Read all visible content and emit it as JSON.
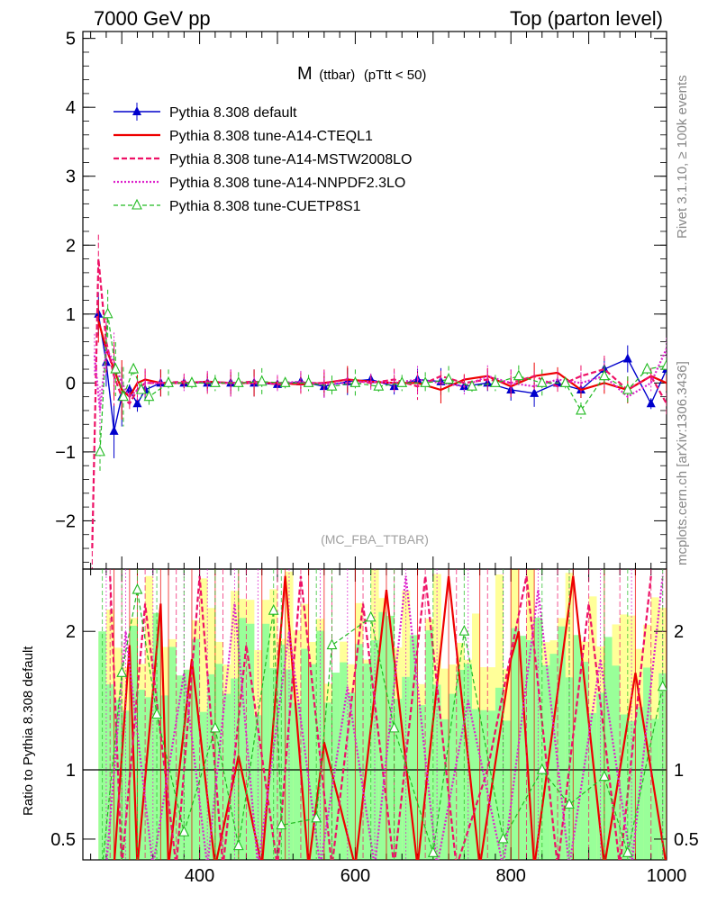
{
  "header": {
    "left": "7000 GeV pp",
    "right": "Top (parton level)"
  },
  "plot_title": {
    "main": "M",
    "sub": "(ttbar)",
    "cut": "(pTtt < 50)"
  },
  "side_labels": {
    "rivet": "Rivet 3.1.10, ≥ 100k events",
    "mcplots": "mcplots.cern.ch [arXiv:1306.3436]"
  },
  "analysis_label": "(MC_FBA_TTBAR)",
  "ratio_ylabel": "Ratio to Pythia 8.308 default",
  "colors": {
    "default": "#0000cc",
    "cteql1": "#ee0000",
    "mstw": "#ee1166",
    "nnpdf": "#dd22cc",
    "cuetp8s1": "#22bb22",
    "band_yellow": "#ffff99",
    "band_green": "#99ff99"
  },
  "chart_data": [
    {
      "type": "line",
      "panel": "main",
      "xlim": [
        250,
        1000
      ],
      "ylim": [
        -2.7,
        5.1
      ],
      "yticks": [
        -2,
        -1,
        0,
        1,
        2,
        3,
        4,
        5
      ],
      "ytick_labels": [
        "−2",
        "−1",
        "0",
        "1",
        "2",
        "3",
        "4",
        "5"
      ],
      "legend_position": "top-left",
      "series": [
        {
          "name": "Pythia 8.308 default",
          "marker": "triangle-filled",
          "style": "solid",
          "x": [
            270,
            280,
            290,
            300,
            310,
            320,
            330,
            350,
            380,
            410,
            440,
            470,
            500,
            530,
            560,
            590,
            620,
            650,
            680,
            710,
            740,
            770,
            800,
            830,
            860,
            890,
            920,
            950,
            980,
            1000
          ],
          "y": [
            1.0,
            0.3,
            -0.7,
            -0.2,
            -0.1,
            -0.3,
            -0.1,
            0.0,
            0.0,
            0.0,
            0.0,
            0.0,
            -0.02,
            0.02,
            -0.05,
            0.02,
            0.05,
            -0.05,
            0.05,
            0.02,
            -0.05,
            0.0,
            -0.1,
            -0.15,
            0.0,
            -0.1,
            0.2,
            0.35,
            -0.3,
            0.2
          ]
        },
        {
          "name": "Pythia 8.308 tune-A14-CTEQL1",
          "style": "solid",
          "x": [
            270,
            280,
            290,
            300,
            310,
            320,
            330,
            350,
            380,
            410,
            440,
            470,
            500,
            530,
            560,
            590,
            620,
            650,
            680,
            710,
            740,
            770,
            800,
            830,
            860,
            890,
            920,
            950,
            980,
            1000
          ],
          "y": [
            0.9,
            0.5,
            0.2,
            -0.1,
            -0.2,
            0.0,
            0.05,
            0.0,
            0.0,
            0.02,
            0.0,
            0.0,
            0.0,
            -0.02,
            0.0,
            0.05,
            0.02,
            0.0,
            0.0,
            -0.1,
            0.05,
            0.1,
            -0.05,
            0.1,
            0.15,
            -0.1,
            0.0,
            -0.1,
            0.1,
            0.0
          ]
        },
        {
          "name": "Pythia 8.308 tune-A14-MSTW2008LO",
          "style": "dashed",
          "x": [
            262,
            270,
            280,
            290,
            300,
            310,
            320,
            330,
            350,
            380,
            410,
            440,
            470,
            500,
            530,
            560,
            590,
            620,
            650,
            680,
            710,
            740,
            770,
            800,
            830,
            860,
            890,
            920,
            950,
            980,
            1000
          ],
          "y": [
            -2.4,
            1.8,
            0.6,
            0.1,
            -0.2,
            -0.3,
            -0.1,
            0.0,
            0.0,
            0.02,
            0.0,
            0.0,
            0.02,
            -0.02,
            0.0,
            0.0,
            0.05,
            0.0,
            0.05,
            -0.05,
            0.1,
            0.0,
            0.05,
            0.0,
            0.1,
            -0.05,
            0.1,
            0.2,
            -0.1,
            0.1,
            -0.3
          ]
        },
        {
          "name": "Pythia 8.308 tune-A14-NNPDF2.3LO",
          "style": "dotted",
          "x": [
            265,
            272,
            280,
            290,
            300,
            310,
            320,
            330,
            350,
            380,
            410,
            440,
            470,
            500,
            530,
            560,
            590,
            620,
            650,
            680,
            710,
            740,
            770,
            800,
            830,
            860,
            890,
            920,
            950,
            980,
            1000
          ],
          "y": [
            0.4,
            -0.4,
            0.5,
            0.3,
            0.0,
            -0.2,
            -0.1,
            0.0,
            0.0,
            0.0,
            0.02,
            0.0,
            0.0,
            0.0,
            0.02,
            -0.02,
            0.0,
            0.02,
            0.0,
            0.05,
            0.0,
            -0.05,
            0.1,
            0.0,
            -0.05,
            0.05,
            0.0,
            0.1,
            -0.2,
            0.0,
            0.5
          ]
        },
        {
          "name": "Pythia 8.308 tune-CUETP8S1",
          "marker": "triangle-open",
          "style": "dashed",
          "x": [
            272,
            282,
            292,
            302,
            315,
            325,
            335,
            360,
            390,
            420,
            450,
            480,
            510,
            540,
            570,
            600,
            630,
            660,
            690,
            720,
            750,
            780,
            810,
            840,
            870,
            890,
            920,
            950,
            975,
            1000
          ],
          "y": [
            -1.0,
            1.0,
            0.2,
            -0.2,
            0.2,
            -0.1,
            -0.2,
            0.0,
            0.0,
            0.0,
            0.0,
            0.02,
            0.0,
            0.0,
            -0.05,
            0.0,
            -0.05,
            0.0,
            0.0,
            0.05,
            -0.05,
            0.0,
            0.1,
            0.0,
            0.0,
            -0.4,
            0.1,
            -0.1,
            0.2,
            0.25
          ]
        }
      ]
    },
    {
      "type": "line",
      "panel": "ratio",
      "xlim": [
        250,
        1000
      ],
      "ylim": [
        0.35,
        2.45
      ],
      "yticks": [
        0.5,
        1,
        2
      ],
      "ytick_labels": [
        "0.5",
        "1",
        "2"
      ],
      "xticks": [
        400,
        600,
        800,
        1000
      ],
      "xtick_labels": [
        "400",
        "600",
        "800",
        "1000"
      ],
      "reference_line": 1,
      "series": [
        {
          "name": "Pythia 8.308 tune-A14-CTEQL1",
          "x": [
            290,
            310,
            320,
            350,
            360,
            390,
            420,
            450,
            480,
            510,
            540,
            560,
            600,
            640,
            680,
            720,
            760,
            800,
            810,
            830,
            880,
            920,
            960,
            1000
          ],
          "y": [
            0.3,
            1.9,
            0.3,
            2.2,
            0.3,
            1.8,
            0.3,
            1.1,
            0.3,
            2.4,
            0.3,
            1.2,
            0.3,
            2.3,
            0.3,
            2.4,
            0.3,
            1.8,
            2.0,
            0.3,
            2.4,
            0.3,
            1.7,
            0.3
          ]
        },
        {
          "name": "Pythia 8.308 tune-A14-MSTW2008LO",
          "x": [
            285,
            300,
            330,
            370,
            400,
            430,
            460,
            500,
            530,
            570,
            610,
            650,
            690,
            730,
            770,
            820,
            860,
            900,
            940,
            980
          ],
          "y": [
            2.4,
            0.3,
            2.2,
            0.3,
            2.4,
            0.3,
            1.9,
            0.3,
            2.4,
            0.3,
            2.2,
            0.3,
            2.4,
            0.3,
            1.0,
            2.4,
            0.3,
            2.2,
            0.3,
            2.4
          ]
        },
        {
          "name": "Pythia 8.308 tune-A14-NNPDF2.3LO",
          "x": [
            280,
            305,
            340,
            380,
            410,
            445,
            475,
            515,
            555,
            590,
            625,
            665,
            705,
            745,
            790,
            835,
            875,
            915,
            955,
            995
          ],
          "y": [
            0.3,
            2.0,
            0.3,
            1.7,
            0.3,
            2.2,
            0.3,
            2.0,
            0.3,
            1.6,
            0.3,
            2.4,
            0.3,
            1.5,
            0.3,
            2.3,
            0.3,
            1.8,
            0.3,
            2.4
          ]
        },
        {
          "name": "Pythia 8.308 tune-CUETP8S1",
          "x": [
            275,
            300,
            320,
            345,
            380,
            420,
            450,
            495,
            505,
            550,
            570,
            620,
            650,
            700,
            740,
            790,
            840,
            875,
            920,
            950,
            995
          ],
          "y": [
            0.3,
            1.7,
            2.3,
            1.4,
            0.55,
            1.3,
            0.45,
            2.15,
            0.6,
            0.65,
            1.9,
            2.1,
            1.3,
            0.4,
            2.0,
            0.5,
            1.0,
            0.75,
            0.95,
            0.4,
            1.6
          ]
        }
      ]
    }
  ]
}
